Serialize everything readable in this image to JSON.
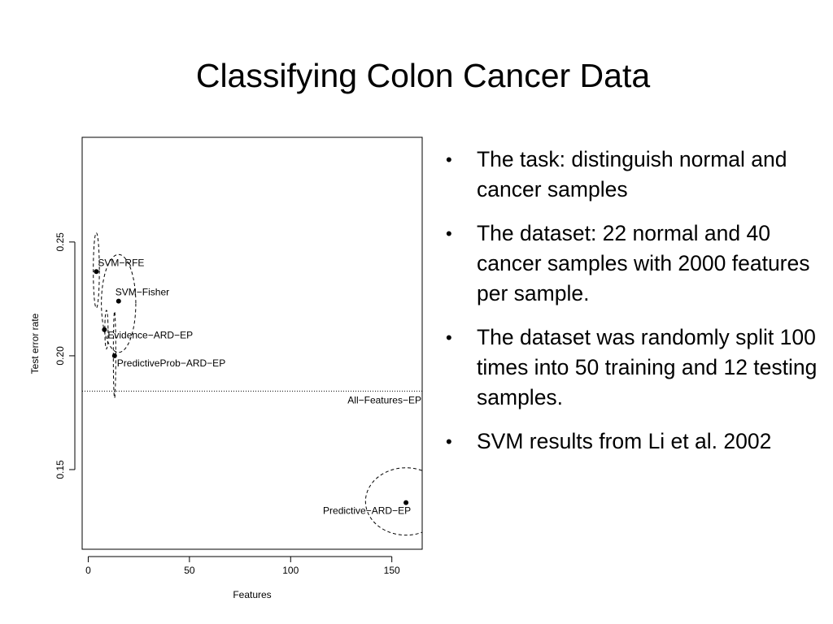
{
  "slide": {
    "title": "Classifying Colon Cancer Data",
    "bullets": [
      "The task: distinguish  normal and cancer samples",
      "The dataset: 22 normal and 40 cancer samples with 2000 features per sample.",
      "The dataset was randomly split 100 times into 50 training and 12 testing samples.",
      "SVM results from Li et al. 2002"
    ]
  },
  "chart_data": {
    "type": "scatter",
    "title": "",
    "xlabel": "Features",
    "ylabel": "Test error rate",
    "xlim": [
      -3,
      165
    ],
    "ylim": [
      0.115,
      0.296
    ],
    "xticks": [
      0,
      50,
      100,
      150
    ],
    "yticks": [
      0.15,
      0.2,
      0.25
    ],
    "xtick_labels": [
      "0",
      "50",
      "100",
      "150"
    ],
    "ytick_labels": [
      "0.15",
      "0.20",
      "0.25"
    ],
    "grid": false,
    "legend": false,
    "points": [
      {
        "label": "SVM−RFE",
        "x": 4,
        "y": 0.237
      },
      {
        "label": "SVM−Fisher",
        "x": 15,
        "y": 0.224
      },
      {
        "label": "Evidence−ARD−EP",
        "x": 8,
        "y": 0.2115
      },
      {
        "label": "PredictiveProb−ARD−EP",
        "x": 13,
        "y": 0.2
      },
      {
        "label": "Predictive−ARD−EP",
        "x": 157,
        "y": 0.1355
      }
    ],
    "reference_line": {
      "label": "All−Features−EP",
      "y": 0.1845,
      "style": "dotted"
    },
    "uncertainty_ellipses": [
      {
        "cx": 4,
        "cy": 0.2375,
        "rx": 1.5,
        "ry": 0.0165
      },
      {
        "cx": 15,
        "cy": 0.223,
        "rx": 8.5,
        "ry": 0.0215
      },
      {
        "cx": 9,
        "cy": 0.2115,
        "rx": 0.8,
        "ry": 0.0085
      },
      {
        "cx": 13,
        "cy": 0.2005,
        "rx": 0.6,
        "ry": 0.019
      },
      {
        "cx": 157,
        "cy": 0.136,
        "rx": 20,
        "ry": 0.0148
      }
    ],
    "colors": {
      "marks": "#000000",
      "background": "#ffffff"
    }
  }
}
